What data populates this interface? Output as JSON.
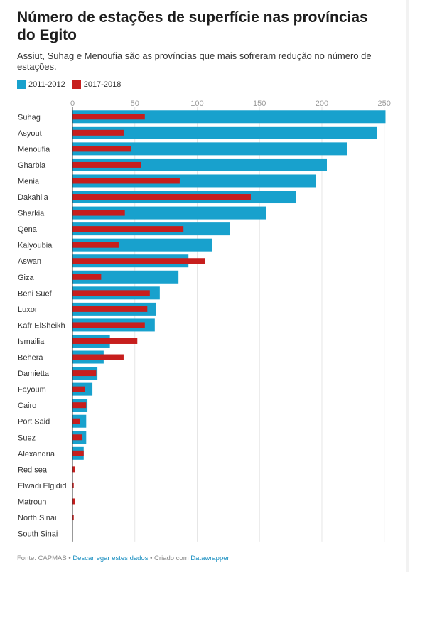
{
  "title": "Número de estações de superfície nas províncias do Egito",
  "subtitle": "Assiut, Suhag e Menoufia são as províncias que mais sofreram redução no número de estações.",
  "footer": {
    "source": "Fonte: CAPMAS",
    "sep1": " • ",
    "download": "Descarregar estes dados",
    "sep2": " • Criado com ",
    "tool": "Datawrapper"
  },
  "colors": {
    "series1": "#18a1cd",
    "series2": "#c71e1d"
  },
  "chart_data": {
    "type": "bar",
    "orientation": "horizontal",
    "categories": [
      "Suhag",
      "Asyout",
      "Menoufia",
      "Gharbia",
      "Menia",
      "Dakahlia",
      "Sharkia",
      "Qena",
      "Kalyoubia",
      "Aswan",
      "Giza",
      "Beni Suef",
      "Luxor",
      "Kafr ElSheikh",
      "Ismailia",
      "Behera",
      "Damietta",
      "Fayoum",
      "Cairo",
      "Port Said",
      "Suez",
      "Alexandria",
      "Red sea",
      "Elwadi Elgidid",
      "Matrouh",
      "North Sinai",
      "South Sinai"
    ],
    "series": [
      {
        "name": "2011-2012",
        "values": [
          251,
          244,
          220,
          204,
          195,
          179,
          155,
          126,
          112,
          93,
          85,
          70,
          67,
          66,
          30,
          25,
          20,
          16,
          12,
          11,
          11,
          9,
          0,
          0,
          0,
          0,
          0
        ]
      },
      {
        "name": "2017-2018",
        "values": [
          58,
          41,
          47,
          55,
          86,
          143,
          42,
          89,
          37,
          106,
          23,
          62,
          60,
          58,
          52,
          41,
          19,
          10,
          11,
          6,
          8,
          9,
          2,
          1,
          2,
          1,
          0
        ]
      }
    ],
    "xlim": [
      0,
      255
    ],
    "xticks": [
      0,
      50,
      100,
      150,
      200,
      250
    ],
    "grid": true,
    "legend_position": "top-left"
  }
}
